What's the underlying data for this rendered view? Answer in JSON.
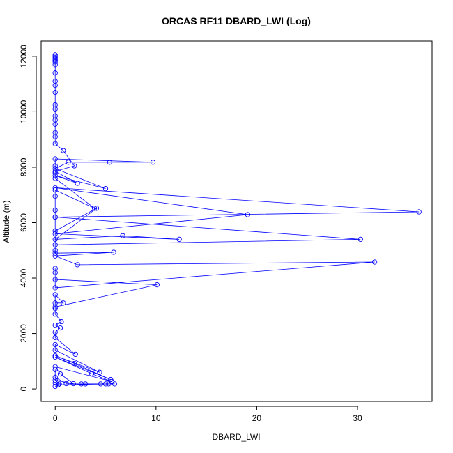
{
  "chart_data": {
    "type": "line",
    "title": "ORCAS RF11 DBARD_LWI (Log)",
    "xlabel": "DBARD_LWI",
    "ylabel": "Altitude (m)",
    "xlim": [
      -1.4,
      37.4
    ],
    "ylim": [
      -450,
      12550
    ],
    "x_ticks": [
      0,
      10,
      20,
      30
    ],
    "y_ticks": [
      0,
      2000,
      4000,
      6000,
      8000,
      10000,
      12000
    ],
    "grid": false,
    "legend": "none",
    "marker": "open-circle",
    "color": "#0000ff",
    "series": [
      {
        "name": "",
        "points": [
          [
            0,
            12050
          ],
          [
            0,
            12000
          ],
          [
            0,
            11950
          ],
          [
            0,
            11900
          ],
          [
            0,
            11850
          ],
          [
            0,
            11800
          ],
          [
            0,
            11700
          ],
          [
            0,
            11400
          ],
          [
            0,
            11100
          ],
          [
            0,
            10950
          ],
          [
            0,
            10700
          ],
          [
            0,
            10250
          ],
          [
            0,
            10100
          ],
          [
            0,
            9850
          ],
          [
            0,
            9700
          ],
          [
            0,
            9550
          ],
          [
            0,
            9250
          ],
          [
            0,
            9100
          ],
          [
            0,
            8850
          ],
          [
            0.8,
            8600
          ],
          [
            1.9,
            8050
          ],
          [
            0,
            7850
          ],
          [
            2.2,
            7420
          ],
          [
            0,
            7700
          ],
          [
            5.0,
            7230
          ],
          [
            0,
            7950
          ],
          [
            1.3,
            8180
          ],
          [
            5.4,
            8180
          ],
          [
            9.7,
            8180
          ],
          [
            0,
            8300
          ],
          [
            0,
            8050
          ],
          [
            0,
            7800
          ],
          [
            0,
            7600
          ],
          [
            3.9,
            6520
          ],
          [
            0,
            7180
          ],
          [
            0,
            6950
          ],
          [
            0,
            6450
          ],
          [
            0,
            6200
          ],
          [
            36.1,
            6390
          ],
          [
            0,
            7260
          ],
          [
            19.1,
            6290
          ],
          [
            0,
            5600
          ],
          [
            12.3,
            5400
          ],
          [
            6.7,
            5530
          ],
          [
            0,
            5400
          ],
          [
            4.1,
            6520
          ],
          [
            0,
            5700
          ],
          [
            0,
            5200
          ],
          [
            30.3,
            5400
          ],
          [
            0,
            6200
          ],
          [
            0,
            5000
          ],
          [
            0,
            4900
          ],
          [
            5.8,
            4930
          ],
          [
            0,
            4800
          ],
          [
            2.2,
            4480
          ],
          [
            31.7,
            4580
          ],
          [
            0,
            3650
          ],
          [
            0,
            4350
          ],
          [
            0,
            4200
          ],
          [
            0,
            3950
          ],
          [
            10.1,
            3760
          ],
          [
            0,
            2960
          ],
          [
            0,
            3100
          ],
          [
            0.8,
            3100
          ],
          [
            0,
            3400
          ],
          [
            0,
            2900
          ],
          [
            0,
            2700
          ],
          [
            0.6,
            2430
          ],
          [
            0,
            2300
          ],
          [
            0.5,
            2200
          ],
          [
            0,
            2050
          ],
          [
            0,
            1850
          ],
          [
            2.0,
            1250
          ],
          [
            0,
            1600
          ],
          [
            0,
            1400
          ],
          [
            4.4,
            600
          ],
          [
            0,
            1200
          ],
          [
            1.9,
            920
          ],
          [
            5.5,
            340
          ],
          [
            0,
            1150
          ],
          [
            3.6,
            550
          ],
          [
            5.6,
            270
          ],
          [
            0,
            800
          ],
          [
            0.5,
            540
          ],
          [
            1.8,
            190
          ],
          [
            0,
            320
          ],
          [
            0,
            700
          ],
          [
            0,
            420
          ],
          [
            1.1,
            190
          ],
          [
            2.6,
            180
          ],
          [
            3.0,
            180
          ],
          [
            4.5,
            180
          ],
          [
            5.0,
            180
          ],
          [
            5.3,
            180
          ],
          [
            5.9,
            180
          ],
          [
            0.3,
            150
          ],
          [
            0,
            220
          ],
          [
            0.4,
            180
          ],
          [
            0,
            90
          ]
        ]
      }
    ]
  }
}
